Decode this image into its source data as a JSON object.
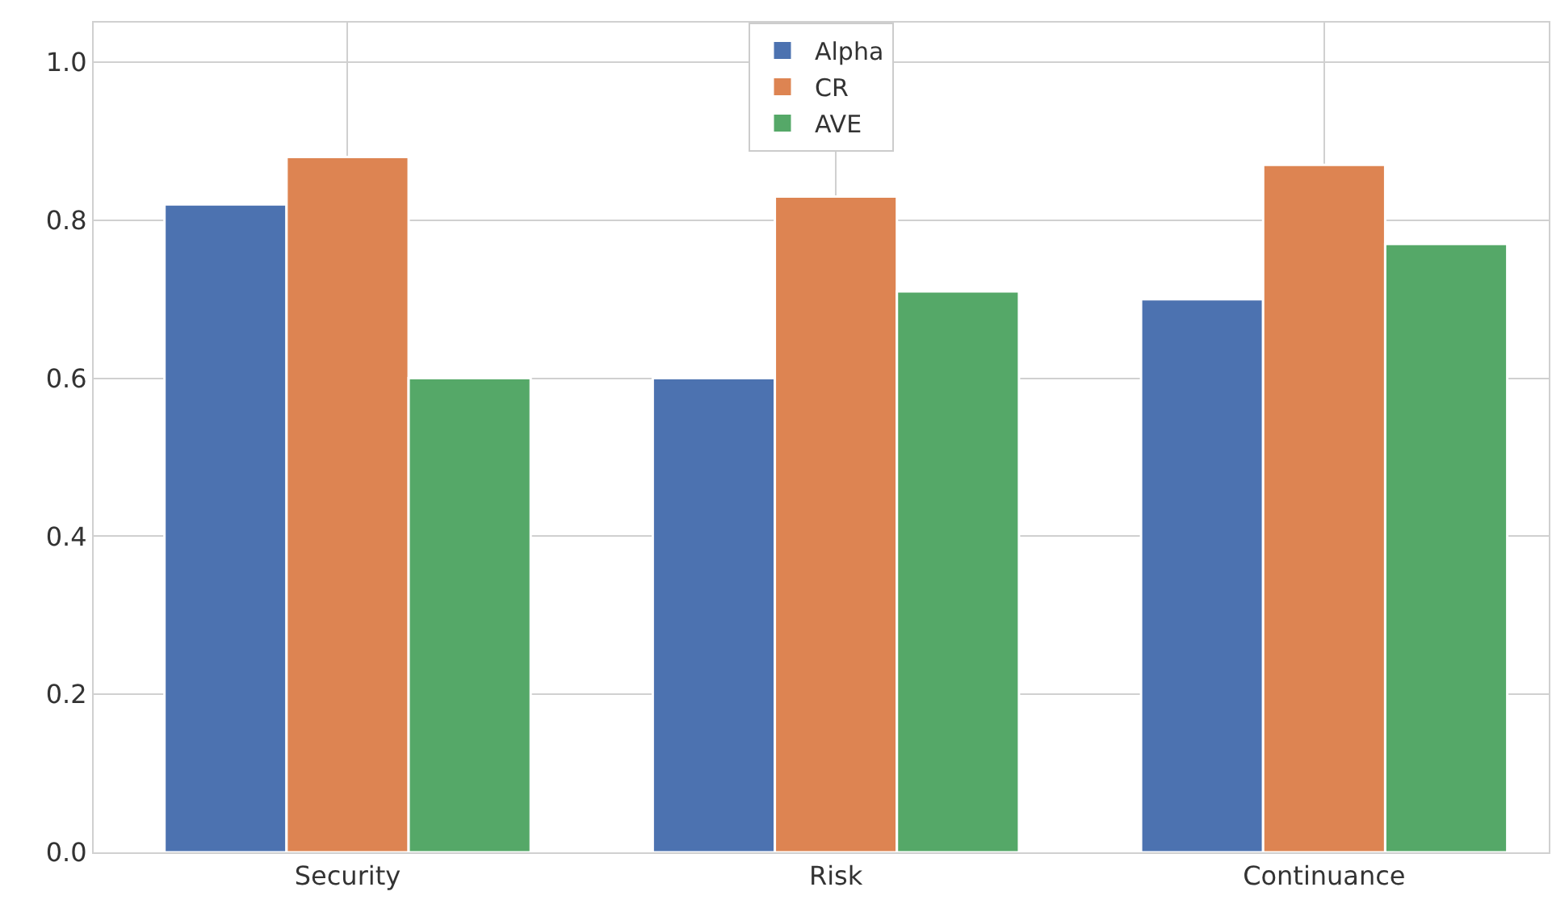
{
  "chart_data": {
    "type": "bar",
    "categories": [
      "Security",
      "Risk",
      "Continuance"
    ],
    "series": [
      {
        "name": "Alpha",
        "color": "#4c72b0",
        "values": [
          0.82,
          0.6,
          0.7
        ]
      },
      {
        "name": "CR",
        "color": "#dd8452",
        "values": [
          0.88,
          0.83,
          0.87
        ]
      },
      {
        "name": "AVE",
        "color": "#55a868",
        "values": [
          0.6,
          0.71,
          0.77
        ]
      }
    ],
    "ylim": [
      0,
      1.05
    ],
    "yticks": [
      {
        "value": 0,
        "label": "0.0"
      },
      {
        "value": 0.2,
        "label": "0.2"
      },
      {
        "value": 0.4,
        "label": "0.4"
      },
      {
        "value": 0.6,
        "label": "0.6"
      },
      {
        "value": 0.8,
        "label": "0.8"
      },
      {
        "value": 1,
        "label": "1.0"
      }
    ],
    "grid": true,
    "legend": "top"
  }
}
